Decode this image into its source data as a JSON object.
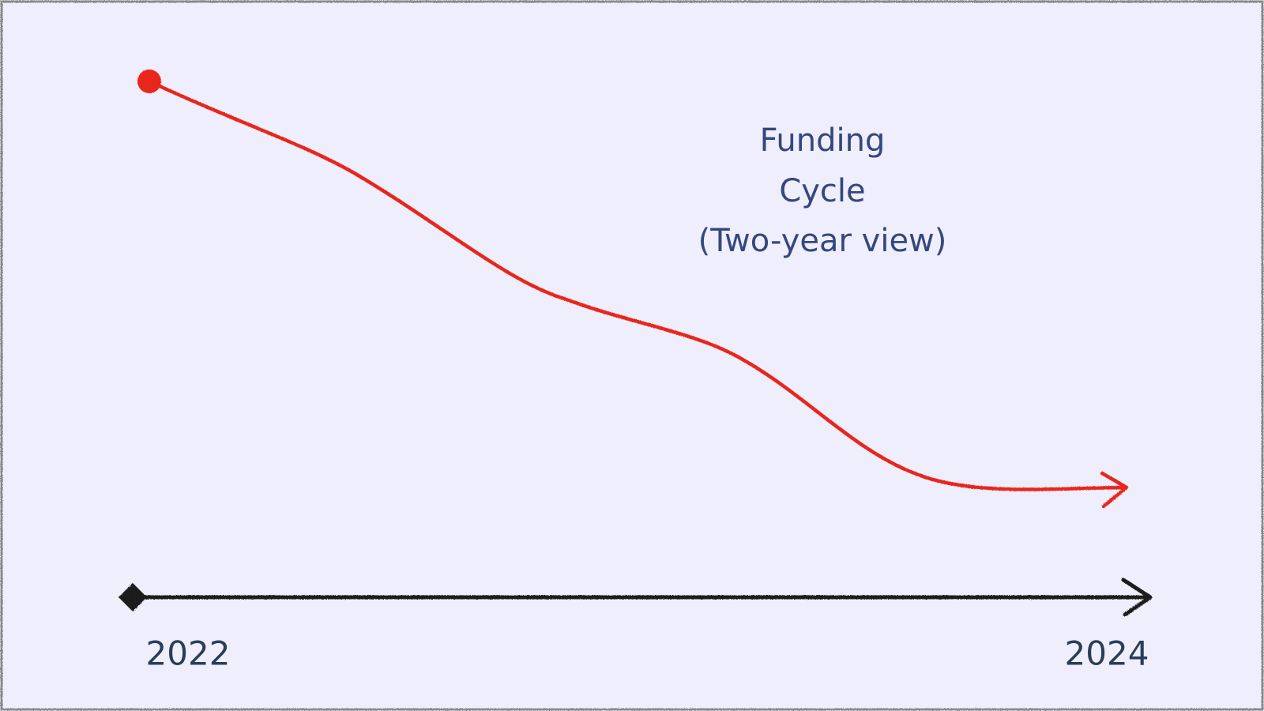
{
  "annotation": {
    "lines": [
      "Funding",
      "Cycle",
      "(Two-year view)"
    ]
  },
  "timeline": {
    "start_label": "2022",
    "end_label": "2024"
  }
}
